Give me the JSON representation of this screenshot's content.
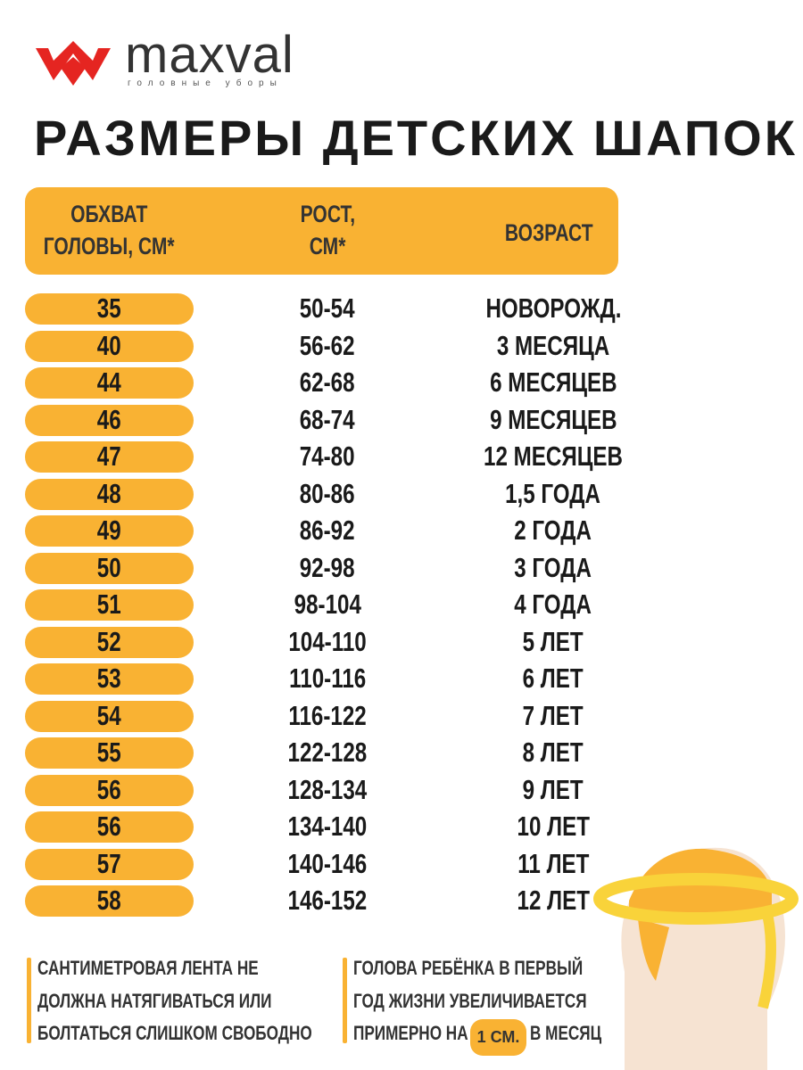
{
  "logo": {
    "name": "maxval",
    "tagline": "головные уборы"
  },
  "title": "РАЗМЕРЫ ДЕТСКИХ ШАПОК",
  "table": {
    "headers": [
      [
        "ОБХВАТ",
        "ГОЛОВЫ, СМ*"
      ],
      [
        "РОСТ,",
        "СМ*"
      ],
      [
        "ВОЗРАСТ"
      ]
    ],
    "rows": [
      [
        "35",
        "50-54",
        "НОВОРОЖД."
      ],
      [
        "40",
        "56-62",
        "3 МЕСЯЦА"
      ],
      [
        "44",
        "62-68",
        "6 МЕСЯЦЕВ"
      ],
      [
        "46",
        "68-74",
        "9 МЕСЯЦЕВ"
      ],
      [
        "47",
        "74-80",
        "12 МЕСЯЦЕВ"
      ],
      [
        "48",
        "80-86",
        "1,5 ГОДА"
      ],
      [
        "49",
        "86-92",
        "2 ГОДА"
      ],
      [
        "50",
        "92-98",
        "3 ГОДА"
      ],
      [
        "51",
        "98-104",
        "4 ГОДА"
      ],
      [
        "52",
        "104-110",
        "5 ЛЕТ"
      ],
      [
        "53",
        "110-116",
        "6 ЛЕТ"
      ],
      [
        "54",
        "116-122",
        "7 ЛЕТ"
      ],
      [
        "55",
        "122-128",
        "8 ЛЕТ"
      ],
      [
        "56",
        "128-134",
        "9 ЛЕТ"
      ],
      [
        "56",
        "134-140",
        "10 ЛЕТ"
      ],
      [
        "57",
        "140-146",
        "11 ЛЕТ"
      ],
      [
        "58",
        "146-152",
        "12 ЛЕТ"
      ]
    ]
  },
  "notes": [
    {
      "lines": [
        "САНТИМЕТРОВАЯ ЛЕНТА НЕ",
        "ДОЛЖНА НАТЯГИВАТЬСЯ ИЛИ",
        "БОЛТАТЬСЯ СЛИШКОМ СВОБОДНО"
      ]
    },
    {
      "lines": [
        "ГОЛОВА РЕБЁНКА В ПЕРВЫЙ",
        "ГОД ЖИЗНИ УВЕЛИЧИВАЕТСЯ",
        "ПРИМЕРНО НА"
      ],
      "highlight": "1 СМ.",
      "after": "В МЕСЯЦ"
    }
  ]
}
